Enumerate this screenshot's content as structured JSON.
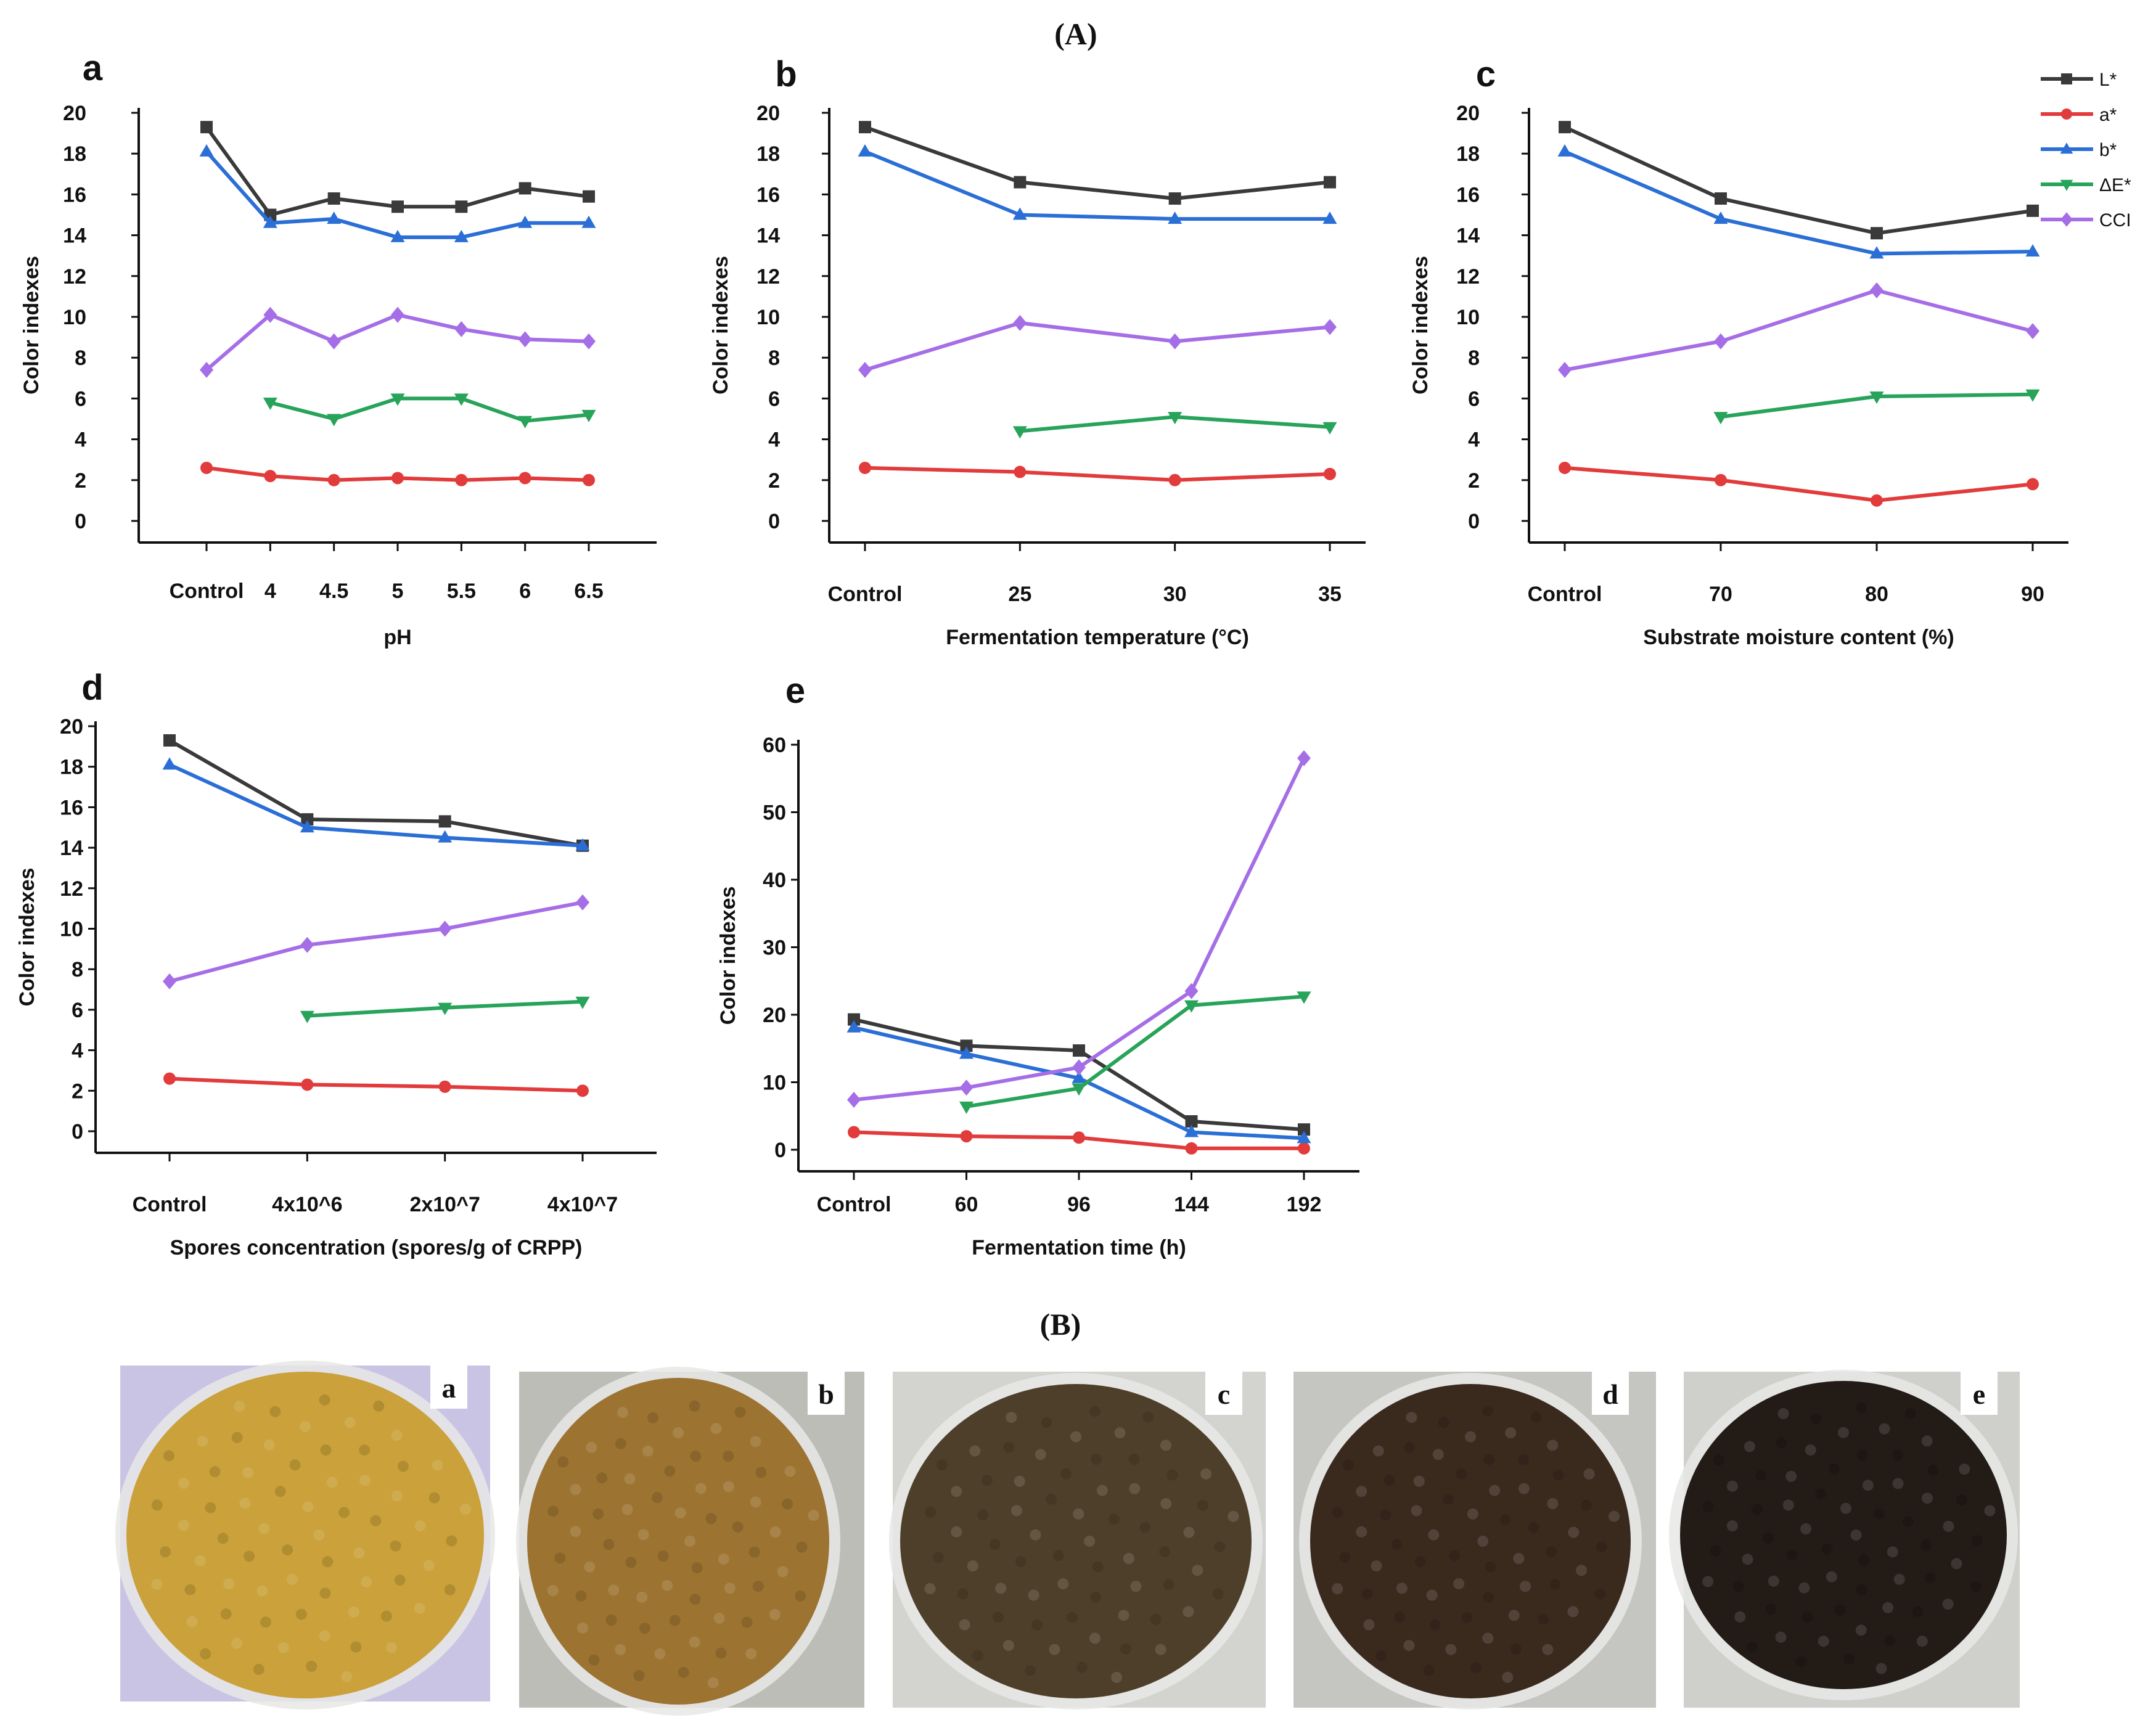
{
  "figure": {
    "title_A": "(A)",
    "title_B": "(B)"
  },
  "legend": [
    {
      "label": "L*",
      "color": "#3a3a3a",
      "marker": "square"
    },
    {
      "label": "a*",
      "color": "#e23b3b",
      "marker": "circle"
    },
    {
      "label": "b*",
      "color": "#2b6fd6",
      "marker": "triangle-up"
    },
    {
      "label": "ΔE*",
      "color": "#27a35a",
      "marker": "triangle-down"
    },
    {
      "label": "CCI",
      "color": "#a56ee6",
      "marker": "diamond"
    }
  ],
  "chart_data": [
    {
      "panel": "a",
      "type": "line",
      "categories": [
        "Control",
        "4",
        "4.5",
        "5",
        "5.5",
        "6",
        "6.5"
      ],
      "xlabel": "pH",
      "ylabel": "Color indexes",
      "ylim": [
        0,
        20
      ],
      "yticks": [
        0,
        2,
        4,
        6,
        8,
        10,
        12,
        14,
        16,
        18,
        20
      ],
      "grid": false,
      "series": [
        {
          "name": "L*",
          "values": [
            19.3,
            15.0,
            15.8,
            15.4,
            15.4,
            16.3,
            15.9
          ]
        },
        {
          "name": "a*",
          "values": [
            2.6,
            2.2,
            2.0,
            2.1,
            2.0,
            2.1,
            2.0
          ]
        },
        {
          "name": "b*",
          "values": [
            18.1,
            14.6,
            14.8,
            13.9,
            13.9,
            14.6,
            14.6
          ]
        },
        {
          "name": "ΔE*",
          "values": [
            null,
            5.8,
            5.0,
            6.0,
            6.0,
            4.9,
            5.2
          ]
        },
        {
          "name": "CCI",
          "values": [
            7.4,
            10.1,
            8.8,
            10.1,
            9.4,
            8.9,
            8.8
          ]
        }
      ]
    },
    {
      "panel": "b",
      "type": "line",
      "categories": [
        "Control",
        "25",
        "30",
        "35"
      ],
      "xlabel": "Fermentation temperature (°C)",
      "ylabel": "Color indexes",
      "ylim": [
        0,
        20
      ],
      "yticks": [
        0,
        2,
        4,
        6,
        8,
        10,
        12,
        14,
        16,
        18,
        20
      ],
      "grid": false,
      "series": [
        {
          "name": "L*",
          "values": [
            19.3,
            16.6,
            15.8,
            16.6
          ]
        },
        {
          "name": "a*",
          "values": [
            2.6,
            2.4,
            2.0,
            2.3
          ]
        },
        {
          "name": "b*",
          "values": [
            18.1,
            15.0,
            14.8,
            14.8
          ]
        },
        {
          "name": "ΔE*",
          "values": [
            null,
            4.4,
            5.1,
            4.6
          ]
        },
        {
          "name": "CCI",
          "values": [
            7.4,
            9.7,
            8.8,
            9.5
          ]
        }
      ]
    },
    {
      "panel": "c",
      "type": "line",
      "categories": [
        "Control",
        "70",
        "80",
        "90"
      ],
      "xlabel": "Substrate moisture content (%)",
      "ylabel": "Color indexes",
      "ylim": [
        0,
        20
      ],
      "yticks": [
        0,
        2,
        4,
        6,
        8,
        10,
        12,
        14,
        16,
        18,
        20
      ],
      "grid": false,
      "series": [
        {
          "name": "L*",
          "values": [
            19.3,
            15.8,
            14.1,
            15.2
          ]
        },
        {
          "name": "a*",
          "values": [
            2.6,
            2.0,
            1.0,
            1.8
          ]
        },
        {
          "name": "b*",
          "values": [
            18.1,
            14.8,
            13.1,
            13.2
          ]
        },
        {
          "name": "ΔE*",
          "values": [
            null,
            5.1,
            6.1,
            6.2
          ]
        },
        {
          "name": "CCI",
          "values": [
            7.4,
            8.8,
            11.3,
            9.3
          ]
        }
      ]
    },
    {
      "panel": "d",
      "type": "line",
      "categories": [
        "Control",
        "4x10^6",
        "2x10^7",
        "4x10^7"
      ],
      "xlabel": "Spores concentration (spores/g of CRPP)",
      "ylabel": "Color indexes",
      "ylim": [
        0,
        20
      ],
      "yticks": [
        0,
        2,
        4,
        6,
        8,
        10,
        12,
        14,
        16,
        18,
        20
      ],
      "grid": false,
      "series": [
        {
          "name": "L*",
          "values": [
            19.3,
            15.4,
            15.3,
            14.1
          ]
        },
        {
          "name": "a*",
          "values": [
            2.6,
            2.3,
            2.2,
            2.0
          ]
        },
        {
          "name": "b*",
          "values": [
            18.1,
            15.0,
            14.5,
            14.1
          ]
        },
        {
          "name": "ΔE*",
          "values": [
            null,
            5.7,
            6.1,
            6.4
          ]
        },
        {
          "name": "CCI",
          "values": [
            7.4,
            9.2,
            10.0,
            11.3
          ]
        }
      ]
    },
    {
      "panel": "e",
      "type": "line",
      "categories": [
        "Control",
        "60",
        "96",
        "144",
        "192"
      ],
      "xlabel": "Fermentation time (h)",
      "ylabel": "Color indexes",
      "ylim": [
        0,
        60
      ],
      "yticks": [
        0,
        10,
        20,
        30,
        40,
        50,
        60
      ],
      "grid": false,
      "series": [
        {
          "name": "L*",
          "values": [
            19.3,
            15.4,
            14.7,
            4.2,
            3.0
          ]
        },
        {
          "name": "a*",
          "values": [
            2.6,
            2.0,
            1.8,
            0.2,
            0.2
          ]
        },
        {
          "name": "b*",
          "values": [
            18.1,
            14.2,
            10.6,
            2.6,
            1.7
          ]
        },
        {
          "name": "ΔE*",
          "values": [
            null,
            6.4,
            9.1,
            21.4,
            22.7
          ]
        },
        {
          "name": "CCI",
          "values": [
            7.4,
            9.2,
            12.2,
            23.5,
            58.0
          ]
        }
      ]
    }
  ],
  "photos": [
    {
      "label": "a",
      "color": "#caa13a"
    },
    {
      "label": "b",
      "color": "#9c7331"
    },
    {
      "label": "c",
      "color": "#4e3f2a"
    },
    {
      "label": "d",
      "color": "#3a2a1e"
    },
    {
      "label": "e",
      "color": "#221b16"
    }
  ]
}
